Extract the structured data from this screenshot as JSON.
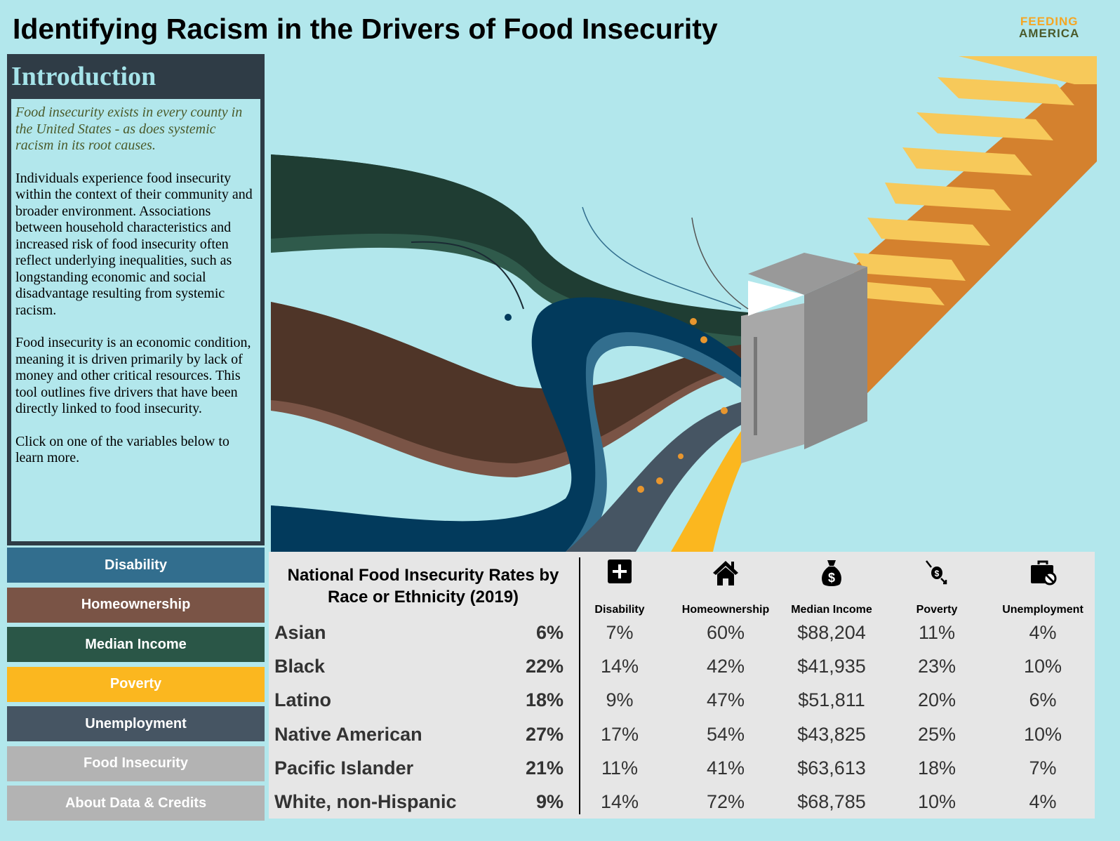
{
  "title": "Identifying Racism in the Drivers of Food Insecurity",
  "logo": {
    "line1": "FEEDING",
    "line2": "AMERICA"
  },
  "intro": {
    "heading": "Introduction",
    "italic": "Food insecurity exists in every county in the United States - as does systemic racism in its root causes.",
    "p1": "Individuals experience food insecurity within the context of their community and broader environment. Associations between household characteristics and increased risk of food insecurity often reflect underlying inequalities, such as longstanding economic and social disadvantage resulting from systemic racism.",
    "p2": "Food insecurity is an economic condition, meaning it is driven primarily by lack of money and other critical resources. This tool outlines five drivers that have been directly linked to food insecurity.",
    "p3": "Click on one of the variables below to learn more."
  },
  "nav": [
    {
      "label": "Disability",
      "color": "#326e8e"
    },
    {
      "label": "Homeownership",
      "color": "#7a5446"
    },
    {
      "label": "Median Income",
      "color": "#2a5647"
    },
    {
      "label": "Poverty",
      "color": "#fbb71f"
    },
    {
      "label": "Unemployment",
      "color": "#465563"
    },
    {
      "label": "Food Insecurity",
      "color": "#b3b3b3"
    },
    {
      "label": "About Data & Credits",
      "color": "#b3b3b3"
    }
  ],
  "table": {
    "heading": "National Food Insecurity Rates by Race or Ethnicity (2019)",
    "columns": [
      {
        "label": "Disability",
        "icon": "medical-plus-icon"
      },
      {
        "label": "Homeownership",
        "icon": "house-icon"
      },
      {
        "label": "Median Income",
        "icon": "money-bag-icon"
      },
      {
        "label": "Poverty",
        "icon": "coin-down-icon"
      },
      {
        "label": "Unemployment",
        "icon": "briefcase-ban-icon"
      }
    ],
    "rows": [
      {
        "name": "Asian",
        "rate": "6%",
        "values": [
          "7%",
          "60%",
          "$88,204",
          "11%",
          "4%"
        ]
      },
      {
        "name": "Black",
        "rate": "22%",
        "values": [
          "14%",
          "42%",
          "$41,935",
          "23%",
          "10%"
        ]
      },
      {
        "name": "Latino",
        "rate": "18%",
        "values": [
          "9%",
          "47%",
          "$51,811",
          "20%",
          "6%"
        ]
      },
      {
        "name": "Native American",
        "rate": "27%",
        "values": [
          "17%",
          "54%",
          "$43,825",
          "25%",
          "10%"
        ]
      },
      {
        "name": "Pacific Islander",
        "rate": "21%",
        "values": [
          "11%",
          "41%",
          "$63,613",
          "18%",
          "7%"
        ]
      },
      {
        "name": "White, non-Hispanic",
        "rate": "9%",
        "values": [
          "14%",
          "72%",
          "$68,785",
          "10%",
          "4%"
        ]
      }
    ]
  }
}
